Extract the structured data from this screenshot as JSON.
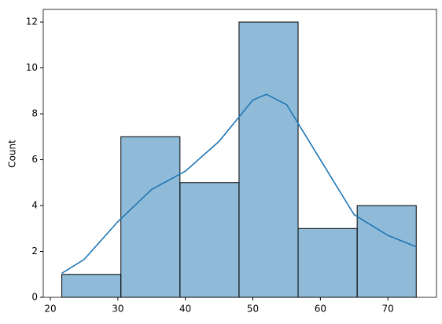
{
  "chart_data": {
    "type": "histogram",
    "ylabel": "Count",
    "bins": [
      21.7,
      30.45,
      39.2,
      47.95,
      56.7,
      65.45,
      74.2
    ],
    "counts": [
      1,
      7,
      5,
      12,
      3,
      4
    ],
    "color": "#1f77b4",
    "kde": {
      "color": "#1f77b4",
      "x": [
        21.7,
        25,
        30,
        35,
        40,
        45,
        50,
        52,
        55,
        60,
        65,
        70,
        74.2
      ],
      "values": [
        1.05,
        1.65,
        3.3,
        4.7,
        5.5,
        6.8,
        8.6,
        8.85,
        8.4,
        6.0,
        3.6,
        2.7,
        2.2
      ]
    },
    "xlim": [
      18.95,
      77.2
    ],
    "ylim": [
      0,
      12.55
    ],
    "xticks": [
      20,
      30,
      40,
      50,
      60,
      70
    ],
    "yticks": [
      0,
      2,
      4,
      6,
      8,
      10,
      12
    ]
  }
}
